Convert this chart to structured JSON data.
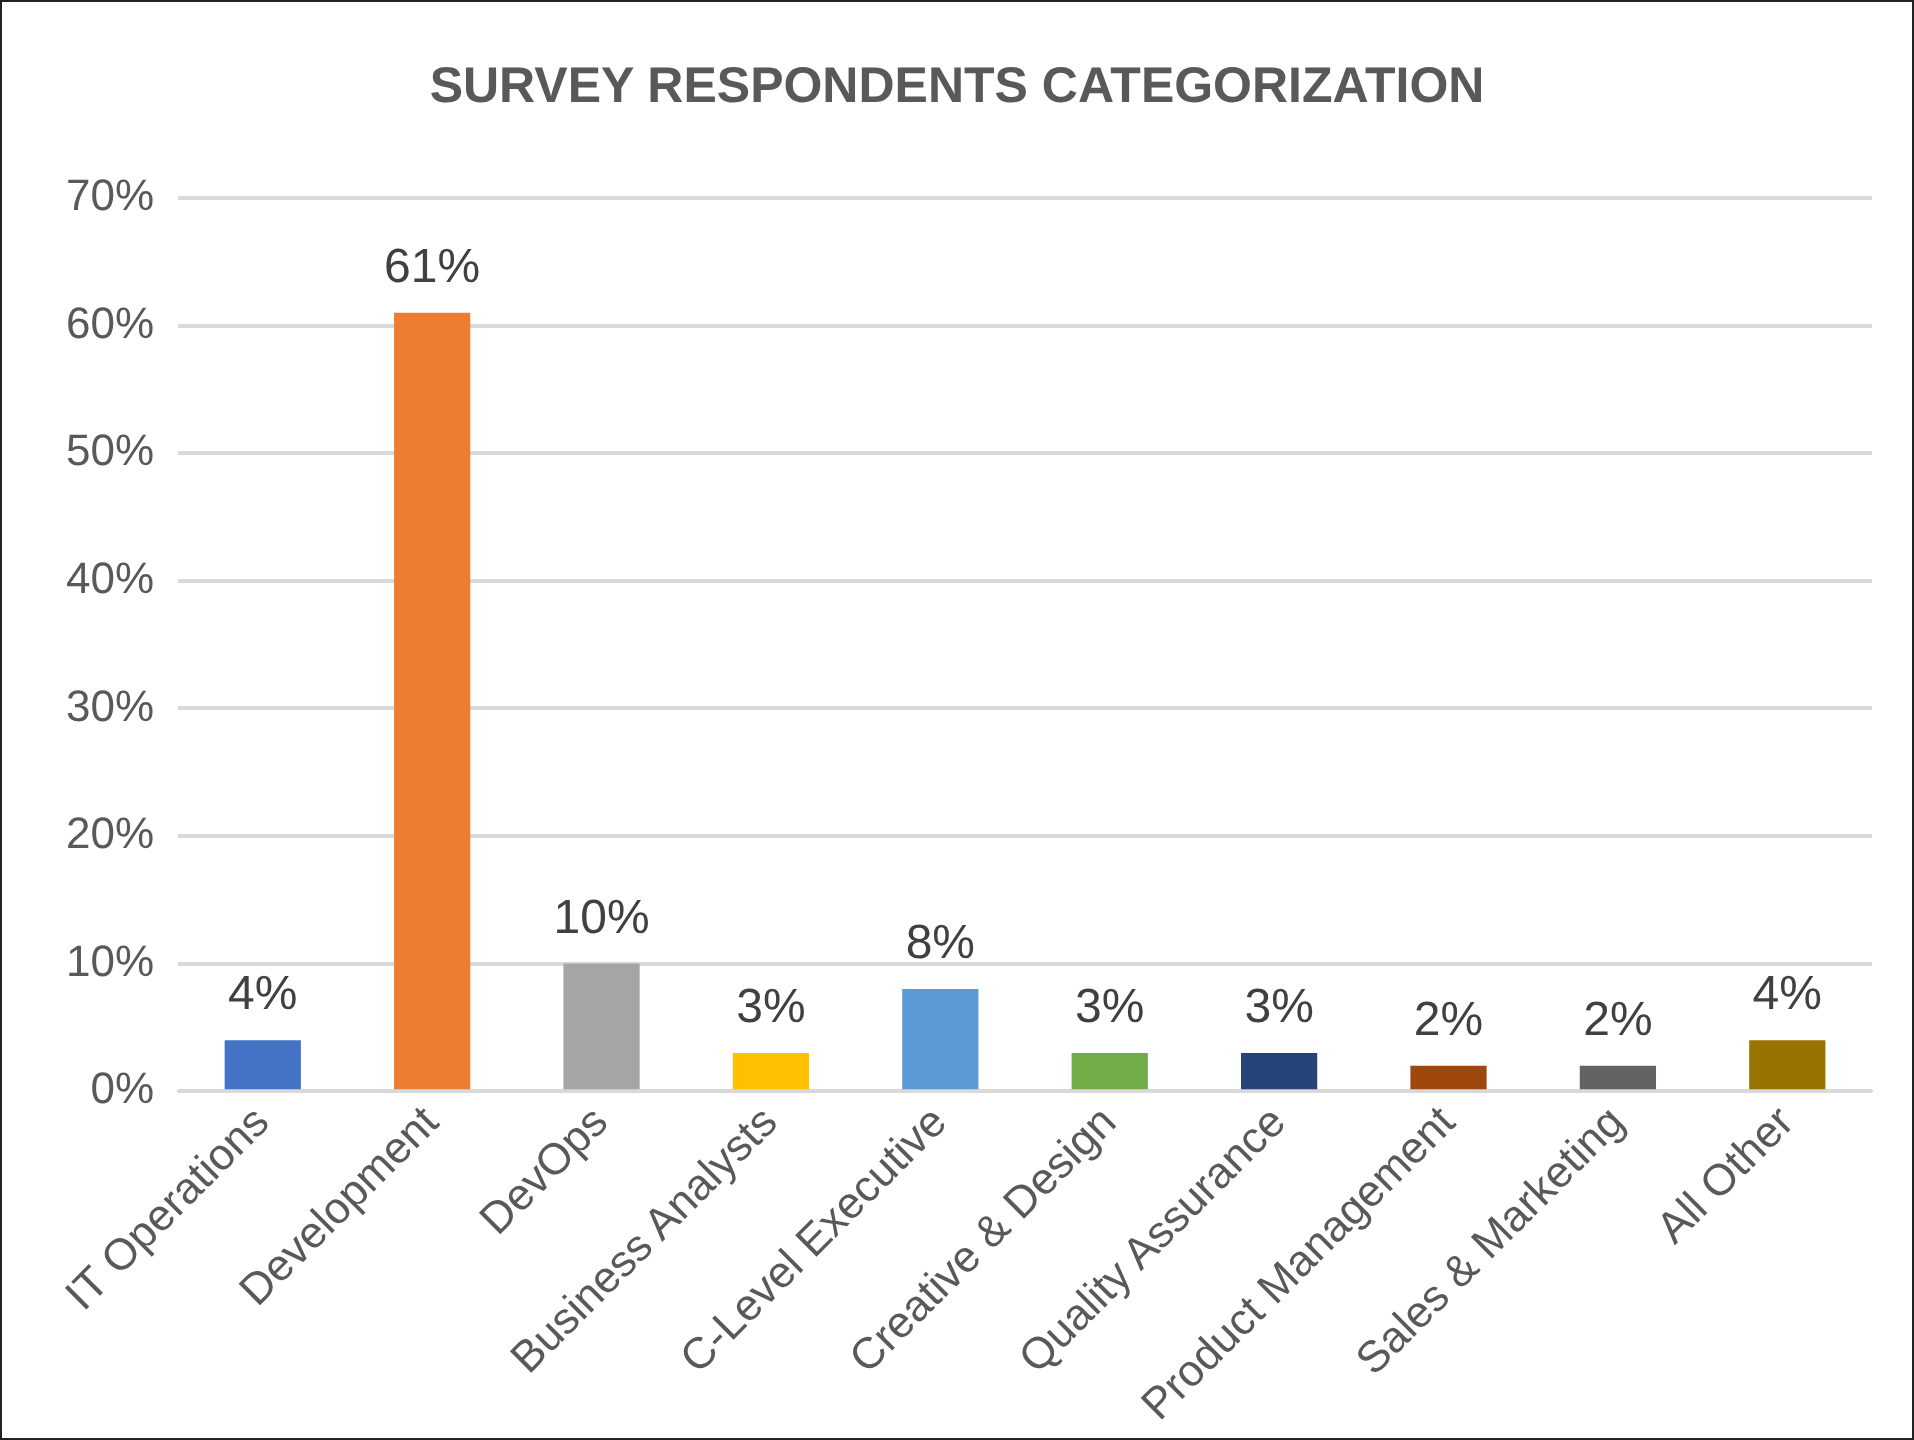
{
  "chart_data": {
    "type": "bar",
    "title": "SURVEY RESPONDENTS CATEGORIZATION",
    "categories": [
      "IT Operations",
      "Development",
      "DevOps",
      "Business Analysts",
      "C-Level Executive",
      "Creative & Design",
      "Quality Assurance",
      "Product Management",
      "Sales & Marketing",
      "All Other"
    ],
    "values": [
      4,
      61,
      10,
      3,
      8,
      3,
      3,
      2,
      2,
      4
    ],
    "colors": [
      "#4472c4",
      "#ed7d31",
      "#a5a5a5",
      "#ffc000",
      "#5b9bd5",
      "#70ad47",
      "#264478",
      "#9e480e",
      "#636363",
      "#997300"
    ],
    "value_labels": [
      "4%",
      "61%",
      "10%",
      "3%",
      "8%",
      "3%",
      "3%",
      "2%",
      "2%",
      "4%"
    ],
    "ylim": [
      0,
      70
    ],
    "yticks": [
      {
        "value": 0,
        "label": "0%"
      },
      {
        "value": 10,
        "label": "10%"
      },
      {
        "value": 20,
        "label": "20%"
      },
      {
        "value": 30,
        "label": "30%"
      },
      {
        "value": 40,
        "label": "40%"
      },
      {
        "value": 50,
        "label": "50%"
      },
      {
        "value": 60,
        "label": "60%"
      },
      {
        "value": 70,
        "label": "70%"
      }
    ],
    "grid": "y",
    "legend": false
  }
}
